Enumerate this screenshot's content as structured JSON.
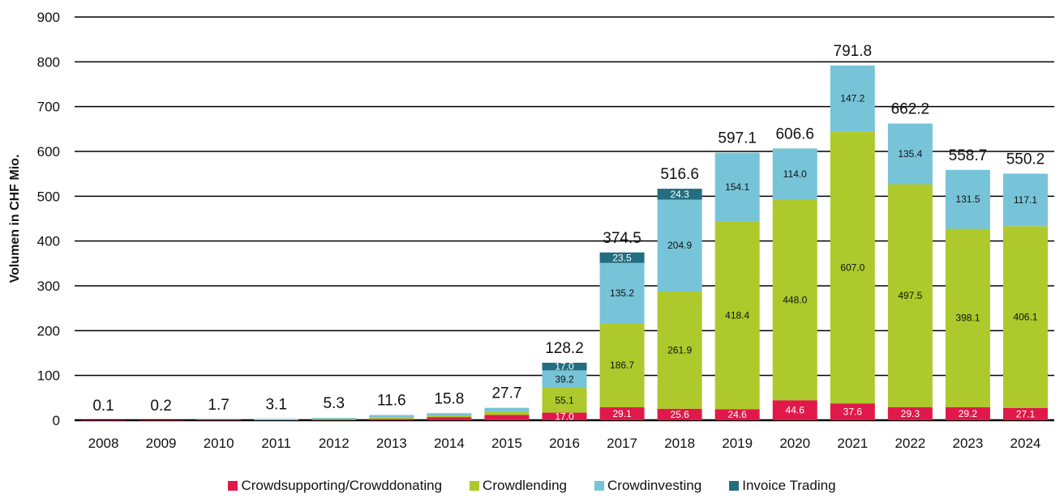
{
  "chart_data": {
    "type": "bar",
    "stacked": true,
    "title": "",
    "xlabel": "",
    "ylabel": "Volumen in CHF Mio.",
    "ylim": [
      0,
      900
    ],
    "yticks": [
      0,
      100,
      200,
      300,
      400,
      500,
      600,
      700,
      800,
      900
    ],
    "grid": true,
    "legend_position": "bottom",
    "categories": [
      "2008",
      "2009",
      "2010",
      "2011",
      "2012",
      "2013",
      "2014",
      "2015",
      "2016",
      "2017",
      "2018",
      "2019",
      "2020",
      "2021",
      "2022",
      "2023",
      "2024"
    ],
    "totals": [
      0.1,
      0.2,
      1.7,
      3.1,
      5.3,
      11.6,
      15.8,
      27.7,
      128.2,
      374.5,
      516.6,
      597.1,
      606.6,
      791.8,
      662.2,
      558.7,
      550.2
    ],
    "series": [
      {
        "name": "Crowdsupporting/Crowddonating",
        "color": "#e0194a",
        "values": [
          0.1,
          0.2,
          1.7,
          0,
          1.0,
          3.0,
          7.0,
          12.0,
          17.0,
          29.1,
          25.6,
          24.6,
          44.6,
          37.6,
          29.3,
          29.2,
          27.1
        ],
        "labeled": [
          false,
          false,
          false,
          false,
          false,
          false,
          false,
          false,
          true,
          true,
          true,
          true,
          true,
          true,
          true,
          true,
          true
        ]
      },
      {
        "name": "Crowdlending",
        "color": "#adc92b",
        "values": [
          0,
          0,
          0,
          0,
          2.0,
          3.0,
          3.0,
          8.0,
          55.1,
          186.7,
          261.9,
          418.4,
          448.0,
          607.0,
          497.5,
          398.1,
          406.1
        ],
        "labeled": [
          false,
          false,
          false,
          false,
          false,
          false,
          false,
          false,
          true,
          true,
          true,
          true,
          true,
          true,
          true,
          true,
          true
        ]
      },
      {
        "name": "Crowdinvesting",
        "color": "#77c4d9",
        "values": [
          0,
          0,
          0,
          3.1,
          2.3,
          5.6,
          5.8,
          7.7,
          39.2,
          135.2,
          204.9,
          154.1,
          114.0,
          147.2,
          135.4,
          131.5,
          117.1
        ],
        "labeled": [
          false,
          false,
          false,
          false,
          false,
          false,
          false,
          false,
          true,
          true,
          true,
          true,
          true,
          true,
          true,
          true,
          true
        ]
      },
      {
        "name": "Invoice Trading",
        "color": "#236e80",
        "values": [
          0,
          0,
          0,
          0,
          0,
          0,
          0,
          0,
          17.0,
          23.5,
          24.3,
          0,
          0,
          0,
          0,
          0,
          0
        ],
        "labeled": [
          false,
          false,
          false,
          false,
          false,
          false,
          false,
          false,
          true,
          true,
          true,
          false,
          false,
          false,
          false,
          false,
          false
        ]
      }
    ]
  }
}
